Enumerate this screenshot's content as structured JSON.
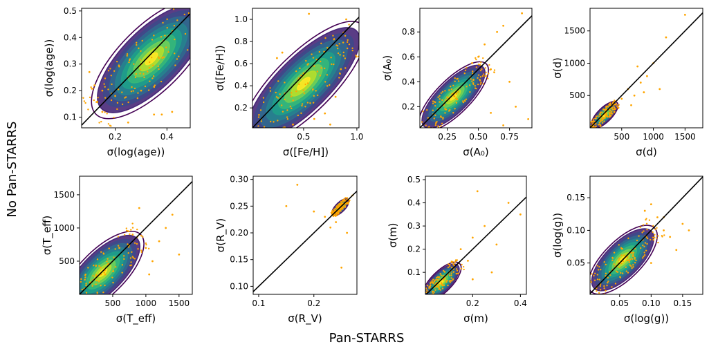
{
  "figure": {
    "supxlabel": "Pan-STARRS",
    "supylabel": "No Pan-STARRS",
    "colors": {
      "points": "#ffa500",
      "line": "#000000",
      "contour_low": "#440154",
      "contour_mid": "#21918c",
      "contour_high": "#fde725"
    }
  },
  "chart_data": [
    {
      "type": "scatter",
      "title": "",
      "xlabel": "σ(log(age))",
      "ylabel": "σ(log(age))",
      "xlim": [
        0.07,
        0.49
      ],
      "ylim": [
        0.06,
        0.51
      ],
      "xticks": [
        0.2,
        0.4
      ],
      "xtick_labels": [
        "0.2",
        "0.4"
      ],
      "yticks": [
        0.1,
        0.2,
        0.3,
        0.4,
        0.5
      ],
      "ytick_labels": [
        "0.1",
        "0.2",
        "0.3",
        "0.4",
        "0.5"
      ],
      "series": [
        {
          "name": "one-to-one",
          "type": "line",
          "x": [
            0.07,
            0.49
          ],
          "y": [
            0.07,
            0.49
          ]
        }
      ],
      "density": {
        "center": [
          0.34,
          0.32
        ],
        "extent": [
          [
            0.09,
            0.1
          ],
          [
            0.48,
            0.48
          ]
        ]
      },
      "points_sample": {
        "x": [
          0.1,
          0.12,
          0.15,
          0.2,
          0.25,
          0.3,
          0.35,
          0.38,
          0.25,
          0.15,
          0.3,
          0.42
        ],
        "y": [
          0.27,
          0.22,
          0.12,
          0.18,
          0.25,
          0.3,
          0.11,
          0.11,
          0.08,
          0.2,
          0.2,
          0.12
        ]
      }
    },
    {
      "type": "scatter",
      "title": "",
      "xlabel": "σ([Fe/H])",
      "ylabel": "σ([Fe/H])",
      "xlim": [
        0.02,
        1.02
      ],
      "ylim": [
        0.02,
        1.1
      ],
      "xticks": [
        0.5,
        1.0
      ],
      "xtick_labels": [
        "0.5",
        "1.0"
      ],
      "yticks": [
        0.2,
        0.4,
        0.6,
        0.8,
        1.0
      ],
      "ytick_labels": [
        "0.2",
        "0.4",
        "0.6",
        "0.8",
        "1.0"
      ],
      "series": [
        {
          "name": "one-to-one",
          "type": "line",
          "x": [
            0.02,
            1.02
          ],
          "y": [
            0.02,
            1.02
          ]
        }
      ],
      "density": {
        "center": [
          0.5,
          0.42
        ],
        "extent": [
          [
            0.02,
            0.02
          ],
          [
            1.0,
            1.1
          ]
        ]
      },
      "points_sample": {
        "x": [
          0.25,
          0.3,
          0.6,
          0.7,
          0.8,
          0.85,
          0.55,
          0.9,
          0.4,
          0.75
        ],
        "y": [
          0.65,
          0.7,
          0.1,
          0.15,
          0.3,
          0.55,
          1.05,
          1.0,
          0.05,
          0.05
        ]
      }
    },
    {
      "type": "scatter",
      "title": "",
      "xlabel": "σ(A₀)",
      "ylabel": "σ(A₀)",
      "xlim": [
        0.03,
        0.93
      ],
      "ylim": [
        0.03,
        0.99
      ],
      "xticks": [
        0.25,
        0.5,
        0.75
      ],
      "xtick_labels": [
        "0.25",
        "0.50",
        "0.75"
      ],
      "yticks": [
        0.2,
        0.4,
        0.6,
        0.8
      ],
      "ytick_labels": [
        "0.2",
        "0.4",
        "0.6",
        "0.8"
      ],
      "series": [
        {
          "name": "one-to-one",
          "type": "line",
          "x": [
            0.03,
            0.93
          ],
          "y": [
            0.03,
            0.93
          ]
        }
      ],
      "density": {
        "center": [
          0.3,
          0.28
        ],
        "extent": [
          [
            0.03,
            0.03
          ],
          [
            0.63,
            0.45
          ]
        ]
      },
      "points_sample": {
        "x": [
          0.5,
          0.55,
          0.6,
          0.65,
          0.7,
          0.75,
          0.85,
          0.9,
          0.45,
          0.6,
          0.8,
          0.7
        ],
        "y": [
          0.6,
          0.7,
          0.5,
          0.8,
          0.85,
          0.4,
          0.95,
          0.1,
          0.55,
          0.15,
          0.2,
          0.05
        ]
      }
    },
    {
      "type": "scatter",
      "title": "",
      "xlabel": "σ(d)",
      "ylabel": "σ(d)",
      "xlim": [
        0,
        1780
      ],
      "ylim": [
        0,
        1850
      ],
      "xticks": [
        500,
        1000,
        1500
      ],
      "xtick_labels": [
        "500",
        "1000",
        "1500"
      ],
      "yticks": [
        500,
        1000,
        1500
      ],
      "ytick_labels": [
        "500",
        "1000",
        "1500"
      ],
      "series": [
        {
          "name": "one-to-one",
          "type": "line",
          "x": [
            0,
            1780
          ],
          "y": [
            0,
            1780
          ]
        }
      ],
      "density": {
        "center": [
          230,
          200
        ],
        "extent": [
          [
            0,
            0
          ],
          [
            350,
            330
          ]
        ]
      },
      "points_sample": {
        "x": [
          500,
          600,
          700,
          800,
          900,
          1000,
          1100,
          1200,
          650,
          850,
          1500,
          750
        ],
        "y": [
          450,
          600,
          500,
          700,
          800,
          1000,
          600,
          1400,
          350,
          550,
          1750,
          950
        ]
      }
    },
    {
      "type": "scatter",
      "title": "",
      "xlabel": "σ(T_eff)",
      "ylabel": "σ(T_eff)",
      "xlim": [
        0,
        1700
      ],
      "ylim": [
        0,
        1780
      ],
      "xticks": [
        500,
        1000,
        1500
      ],
      "xtick_labels": [
        "500",
        "1000",
        "1500"
      ],
      "yticks": [
        500,
        1000,
        1500
      ],
      "ytick_labels": [
        "500",
        "1000",
        "1500"
      ],
      "series": [
        {
          "name": "one-to-one",
          "type": "line",
          "x": [
            0,
            1700
          ],
          "y": [
            0,
            1700
          ]
        }
      ],
      "density": {
        "center": [
          350,
          330
        ],
        "extent": [
          [
            0,
            0
          ],
          [
            1000,
            950
          ]
        ]
      },
      "points_sample": {
        "x": [
          600,
          800,
          1000,
          1100,
          1200,
          1300,
          1400,
          1500,
          900,
          1050
        ],
        "y": [
          700,
          900,
          700,
          500,
          800,
          1000,
          1200,
          600,
          1300,
          300
        ]
      }
    },
    {
      "type": "scatter",
      "title": "",
      "xlabel": "σ(R_V)",
      "ylabel": "σ(R_V)",
      "xlim": [
        0.09,
        0.278
      ],
      "ylim": [
        0.085,
        0.306
      ],
      "xticks": [
        0.1,
        0.2
      ],
      "xtick_labels": [
        "0.1",
        "0.2"
      ],
      "yticks": [
        0.1,
        0.15,
        0.2,
        0.25,
        0.3
      ],
      "ytick_labels": [
        "0.10",
        "0.15",
        "0.20",
        "0.25",
        "0.30"
      ],
      "series": [
        {
          "name": "one-to-one",
          "type": "line",
          "x": [
            0.09,
            0.278
          ],
          "y": [
            0.09,
            0.278
          ]
        }
      ],
      "density": {
        "center": [
          0.248,
          0.248
        ],
        "extent": [
          [
            0.232,
            0.232
          ],
          [
            0.264,
            0.264
          ]
        ]
      },
      "points_sample": {
        "x": [
          0.15,
          0.17,
          0.2,
          0.22,
          0.23,
          0.26,
          0.27,
          0.25,
          0.24
        ],
        "y": [
          0.25,
          0.29,
          0.24,
          0.23,
          0.21,
          0.2,
          0.27,
          0.135,
          0.22
        ]
      }
    },
    {
      "type": "scatter",
      "title": "",
      "xlabel": "σ(m)",
      "ylabel": "σ(m)",
      "xlim": [
        0.002,
        0.425
      ],
      "ylim": [
        0.005,
        0.515
      ],
      "xticks": [
        0.2,
        0.4
      ],
      "xtick_labels": [
        "0.2",
        "0.4"
      ],
      "yticks": [
        0.1,
        0.2,
        0.3,
        0.4,
        0.5
      ],
      "ytick_labels": [
        "0.1",
        "0.2",
        "0.3",
        "0.4",
        "0.5"
      ],
      "series": [
        {
          "name": "one-to-one",
          "type": "line",
          "x": [
            0.002,
            0.425
          ],
          "y": [
            0.002,
            0.425
          ]
        }
      ],
      "density": {
        "center": [
          0.07,
          0.06
        ],
        "extent": [
          [
            0.002,
            0.005
          ],
          [
            0.15,
            0.15
          ]
        ]
      },
      "points_sample": {
        "x": [
          0.15,
          0.18,
          0.2,
          0.22,
          0.25,
          0.28,
          0.3,
          0.35,
          0.4,
          0.2
        ],
        "y": [
          0.2,
          0.15,
          0.25,
          0.45,
          0.3,
          0.1,
          0.22,
          0.4,
          0.35,
          0.07
        ]
      }
    },
    {
      "type": "scatter",
      "title": "",
      "xlabel": "σ(log(g))",
      "ylabel": "σ(log(g))",
      "xlim": [
        0.003,
        0.182
      ],
      "ylim": [
        0.002,
        0.183
      ],
      "xticks": [
        0.05,
        0.1,
        0.15
      ],
      "xtick_labels": [
        "0.05",
        "0.10",
        "0.15"
      ],
      "yticks": [
        0.05,
        0.1,
        0.15
      ],
      "ytick_labels": [
        "0.05",
        "0.10",
        "0.15"
      ],
      "series": [
        {
          "name": "one-to-one",
          "type": "line",
          "x": [
            0.003,
            0.182
          ],
          "y": [
            0.003,
            0.182
          ]
        }
      ],
      "density": {
        "center": [
          0.055,
          0.055
        ],
        "extent": [
          [
            0.005,
            0.005
          ],
          [
            0.11,
            0.11
          ]
        ]
      },
      "points_sample": {
        "x": [
          0.09,
          0.1,
          0.11,
          0.12,
          0.13,
          0.15,
          0.16,
          0.14,
          0.1,
          0.12
        ],
        "y": [
          0.13,
          0.14,
          0.12,
          0.1,
          0.09,
          0.11,
          0.1,
          0.07,
          0.05,
          0.12
        ]
      }
    }
  ]
}
